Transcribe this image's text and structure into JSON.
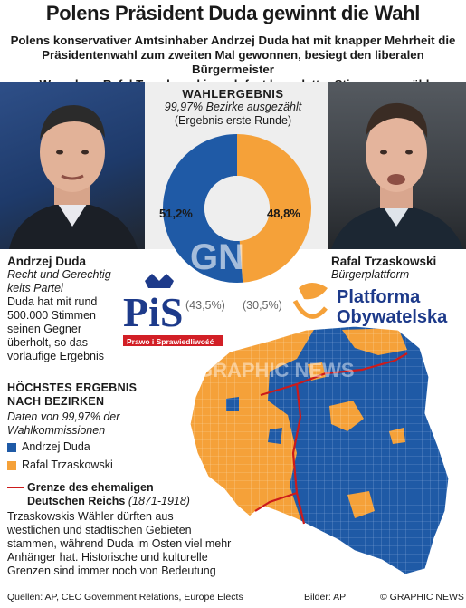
{
  "header": {
    "title": "Polens Präsident Duda gewinnt die Wahl",
    "subtitle_lines": [
      "Polens konservativer Amtsinhaber Andrzej Duda hat mit knapper Mehrheit die",
      "Präsidentenwahl zum zweiten Mal gewonnen, besiegt den liberalen Bürgermeister",
      "von Warschau, Rafal Trzaskowski, nach fast kompletter Stimmenauszählung"
    ]
  },
  "result_panel": {
    "title": "WAHLERGEBNIS",
    "line1": "99,97% Bezirke ausgezählt",
    "line2": "(Ergebnis erste Runde)",
    "duda_pct": "51,2%",
    "trz_pct": "48,8%",
    "duda_first_round": "(43,5%)",
    "trz_first_round": "(30,5%)"
  },
  "candidates": {
    "duda": {
      "name": "Andrzej Duda",
      "party_lines": [
        "Recht und Gerechtig-",
        "keits Partei"
      ],
      "desc_lines": [
        "Duda hat mit rund",
        "500.000 Stimmen",
        "seinen Gegner",
        "überholt, so das",
        "vorläufige Ergebnis"
      ]
    },
    "trzaskowski": {
      "name": "Rafal Trzaskowski",
      "party": "Bürgerplattform"
    }
  },
  "logos": {
    "pis_letters": "PiS",
    "pis_text": "Prawo i Sprawiedliwość",
    "po_line1": "Platforma",
    "po_line2": "Obywatelska"
  },
  "legend": {
    "title_line1": "HÖCHSTES ERGEBNIS",
    "title_line2": "NACH BEZIRKEN",
    "sub_line1": "Daten von 99,97% der",
    "sub_line2": "Wahlkommissionen",
    "item_duda": "Andrzej Duda",
    "item_trz": "Rafal Trzaskowski",
    "border_line1": "Grenze des ehemaligen",
    "border_line2_bold": "Deutschen Reichs",
    "border_years": "(1871-1918)",
    "note_lines": [
      "Trzaskowskis Wähler dürften aus",
      "westlichen und städtischen Gebieten",
      "stammen, während Duda im Osten viel mehr",
      "Anhänger hat. Historische und kulturelle",
      "Grenzen sind immer noch von Bedeutung"
    ]
  },
  "watermark": {
    "letters": "GN",
    "text": "GRAPHIC NEWS"
  },
  "footer": {
    "sources": "Quellen: AP, CEC Government Relations, Europe Elects",
    "images": "Bilder: AP",
    "copyright": "© GRAPHIC NEWS"
  },
  "colors": {
    "duda": "#1f5aa6",
    "trzaskowski": "#f5a139",
    "border_line": "#cc1b1b",
    "pis_blue": "#1d3a8a",
    "pis_red": "#d21f26"
  },
  "chart_data": {
    "type": "pie",
    "title": "WAHLERGEBNIS",
    "categories": [
      "Andrzej Duda",
      "Rafal Trzaskowski"
    ],
    "values": [
      51.2,
      48.8
    ],
    "first_round_values": [
      43.5,
      30.5
    ],
    "donut": true
  }
}
